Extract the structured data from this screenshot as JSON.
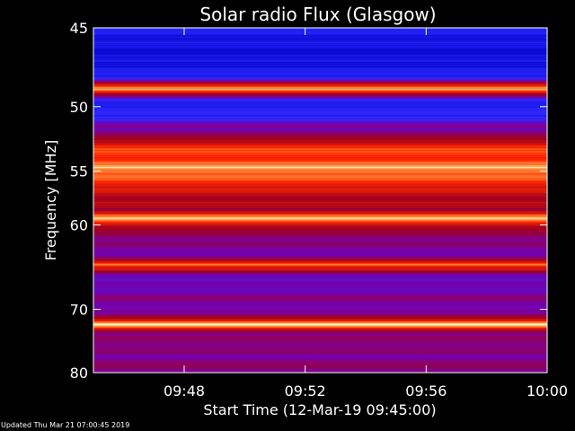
{
  "chart_data": {
    "type": "heatmap",
    "title": "Solar radio Flux (Glasgow)",
    "xlabel": "Start Time (12-Mar-19 09:45:00)",
    "ylabel": "Frequency [MHz]",
    "x_range": [
      "09:45",
      "10:00"
    ],
    "x_ticks": [
      "09:48",
      "09:52",
      "09:56",
      "10:00"
    ],
    "y_range": [
      45,
      80
    ],
    "y_scale": "reciprocal",
    "y_ticks": [
      45,
      50,
      55,
      60,
      70,
      80
    ],
    "grid": false,
    "colors": {
      "background": "#000000",
      "low": "#1a1aff",
      "mid": "#8800aa",
      "high": "#ff2200",
      "peak": "#ffffcc"
    },
    "band_profile": [
      {
        "freq": 45.0,
        "level": 0.1
      },
      {
        "freq": 46.5,
        "level": 0.0
      },
      {
        "freq": 48.0,
        "level": 0.12
      },
      {
        "freq": 48.8,
        "level": 1.0
      },
      {
        "freq": 49.5,
        "level": 0.15
      },
      {
        "freq": 50.5,
        "level": 0.12
      },
      {
        "freq": 51.5,
        "level": 0.35
      },
      {
        "freq": 52.5,
        "level": 0.55
      },
      {
        "freq": 53.0,
        "level": 0.8
      },
      {
        "freq": 54.0,
        "level": 0.78
      },
      {
        "freq": 54.8,
        "level": 0.95
      },
      {
        "freq": 55.8,
        "level": 0.8
      },
      {
        "freq": 57.0,
        "level": 0.62
      },
      {
        "freq": 58.5,
        "level": 0.55
      },
      {
        "freq": 59.3,
        "level": 0.95
      },
      {
        "freq": 60.5,
        "level": 0.5
      },
      {
        "freq": 62.0,
        "level": 0.4
      },
      {
        "freq": 63.5,
        "level": 0.35
      },
      {
        "freq": 64.3,
        "level": 0.9
      },
      {
        "freq": 65.5,
        "level": 0.35
      },
      {
        "freq": 67.0,
        "level": 0.3
      },
      {
        "freq": 68.5,
        "level": 0.4
      },
      {
        "freq": 70.5,
        "level": 0.32
      },
      {
        "freq": 72.2,
        "level": 0.98
      },
      {
        "freq": 73.5,
        "level": 0.4
      },
      {
        "freq": 75.0,
        "level": 0.45
      },
      {
        "freq": 77.0,
        "level": 0.38
      },
      {
        "freq": 80.0,
        "level": 0.45
      }
    ]
  },
  "footer": {
    "updated": "Updated Thu Mar 21 07:00:45 2019"
  }
}
